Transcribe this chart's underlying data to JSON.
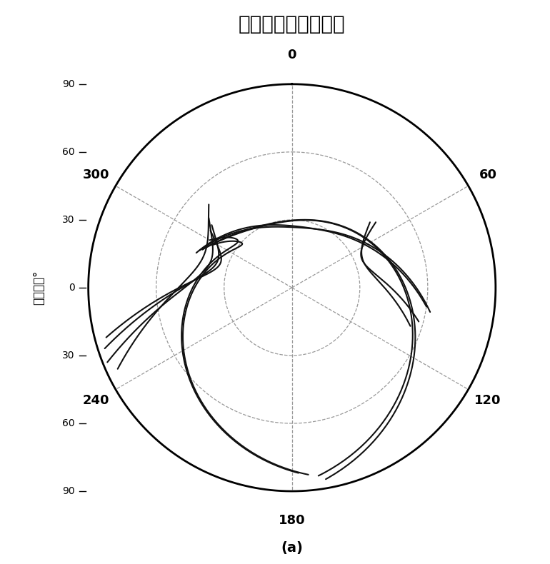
{
  "title": "原始卫星轨迹天空图",
  "subtitle": "(a)",
  "azimuth_labels": [
    "0",
    "60",
    "120",
    "180",
    "240",
    "300"
  ],
  "azimuth_values": [
    0,
    60,
    120,
    180,
    240,
    300
  ],
  "ylabel": "天顶距／°",
  "bg_color": "#ffffff",
  "grid_color": "#999999",
  "track_color": "#111111",
  "figsize": [
    7.7,
    7.9
  ],
  "dpi": 100,
  "tracks": [
    {
      "az1": 315,
      "zen1": 52,
      "az2": 245,
      "zen2": 85,
      "ctrl_az": 278,
      "ctrl_zen": 20
    },
    {
      "az1": 310,
      "zen1": 48,
      "az2": 248,
      "zen2": 88,
      "ctrl_az": 275,
      "ctrl_zen": 15
    },
    {
      "az1": 308,
      "zen1": 45,
      "az2": 252,
      "zen2": 87,
      "ctrl_az": 278,
      "ctrl_zen": 12
    },
    {
      "az1": 305,
      "zen1": 44,
      "az2": 255,
      "zen2": 85,
      "ctrl_az": 280,
      "ctrl_zen": 10
    },
    {
      "az1": 300,
      "zen1": 42,
      "az2": 178,
      "zen2": 82,
      "ctrl_az": 350,
      "ctrl_zen": 8
    },
    {
      "az1": 298,
      "zen1": 40,
      "az2": 175,
      "zen2": 83,
      "ctrl_az": 355,
      "ctrl_zen": 5
    },
    {
      "az1": 295,
      "zen1": 42,
      "az2": 172,
      "zen2": 84,
      "ctrl_az": 5,
      "ctrl_zen": 3
    },
    {
      "az1": 293,
      "zen1": 43,
      "az2": 170,
      "zen2": 86,
      "ctrl_az": 8,
      "ctrl_zen": 2
    },
    {
      "az1": 292,
      "zen1": 44,
      "az2": 100,
      "zen2": 62,
      "ctrl_az": 20,
      "ctrl_zen": 2
    },
    {
      "az1": 290,
      "zen1": 45,
      "az2": 98,
      "zen2": 60,
      "ctrl_az": 25,
      "ctrl_zen": 3
    },
    {
      "az1": 52,
      "zen1": 47,
      "az2": 105,
      "zen2": 58,
      "ctrl_az": 65,
      "ctrl_zen": 15
    },
    {
      "az1": 50,
      "zen1": 45,
      "az2": 108,
      "zen2": 55,
      "ctrl_az": 68,
      "ctrl_zen": 18
    }
  ]
}
